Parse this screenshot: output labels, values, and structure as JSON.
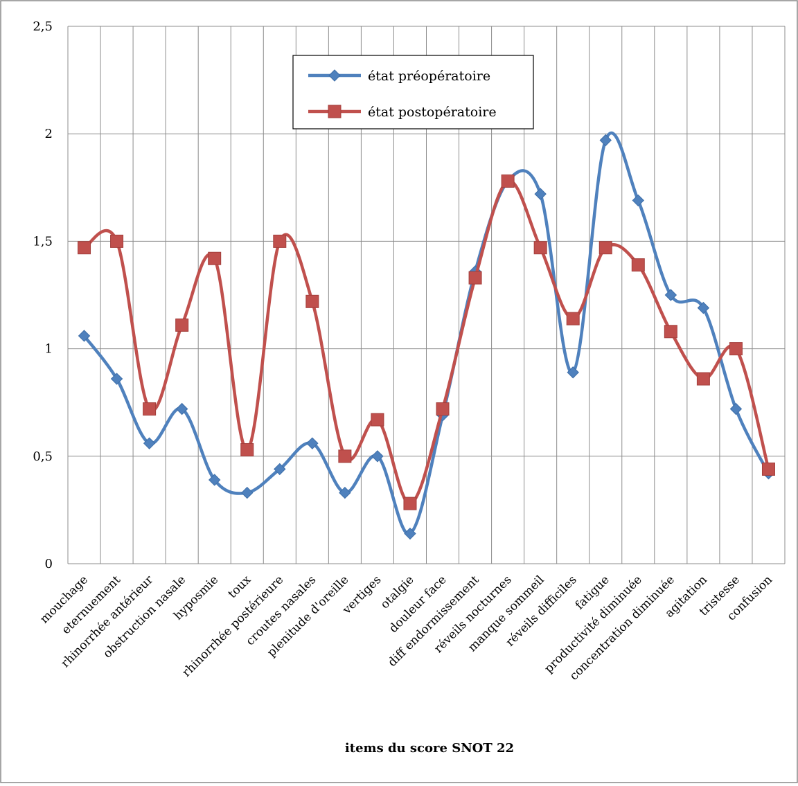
{
  "chart_data": {
    "type": "line",
    "title": "",
    "xlabel": "items du score SNOT 22",
    "ylabel": "",
    "ylim": [
      0,
      2.5
    ],
    "yticks": [
      "0",
      "0,5",
      "1",
      "1,5",
      "2",
      "2,5"
    ],
    "grid": true,
    "smooth": true,
    "legend_position": "top-center",
    "categories": [
      "mouchage",
      "eternuement",
      "rhinorrhée antérieur",
      "obstruction nasale",
      "hyposmie",
      "toux",
      "rhinorrhée postérieure",
      "croutes nasales",
      "plenitude d'oreille",
      "vertiges",
      "otalgie",
      "douleur face",
      "diff endormissement",
      "réveils nocturnes",
      "manque sommeil",
      "réveils difficiles",
      "fatigue",
      "productivité diminuée",
      "concentration diminuée",
      "agitation",
      "tristesse",
      "confusion"
    ],
    "series": [
      {
        "name": "état préopératoire",
        "color": "#4f81bd",
        "marker": "diamond",
        "values": [
          1.06,
          0.86,
          0.56,
          0.72,
          0.39,
          0.33,
          0.44,
          0.56,
          0.33,
          0.5,
          0.14,
          0.69,
          1.36,
          1.78,
          1.72,
          0.89,
          1.97,
          1.69,
          1.25,
          1.19,
          0.72,
          0.42
        ]
      },
      {
        "name": "état postopératoire",
        "color": "#c0504d",
        "marker": "square",
        "values": [
          1.47,
          1.5,
          0.72,
          1.11,
          1.42,
          0.53,
          1.5,
          1.22,
          0.5,
          0.67,
          0.28,
          0.72,
          1.33,
          1.78,
          1.47,
          1.14,
          1.47,
          1.39,
          1.08,
          0.86,
          1.0,
          0.44
        ]
      }
    ]
  }
}
